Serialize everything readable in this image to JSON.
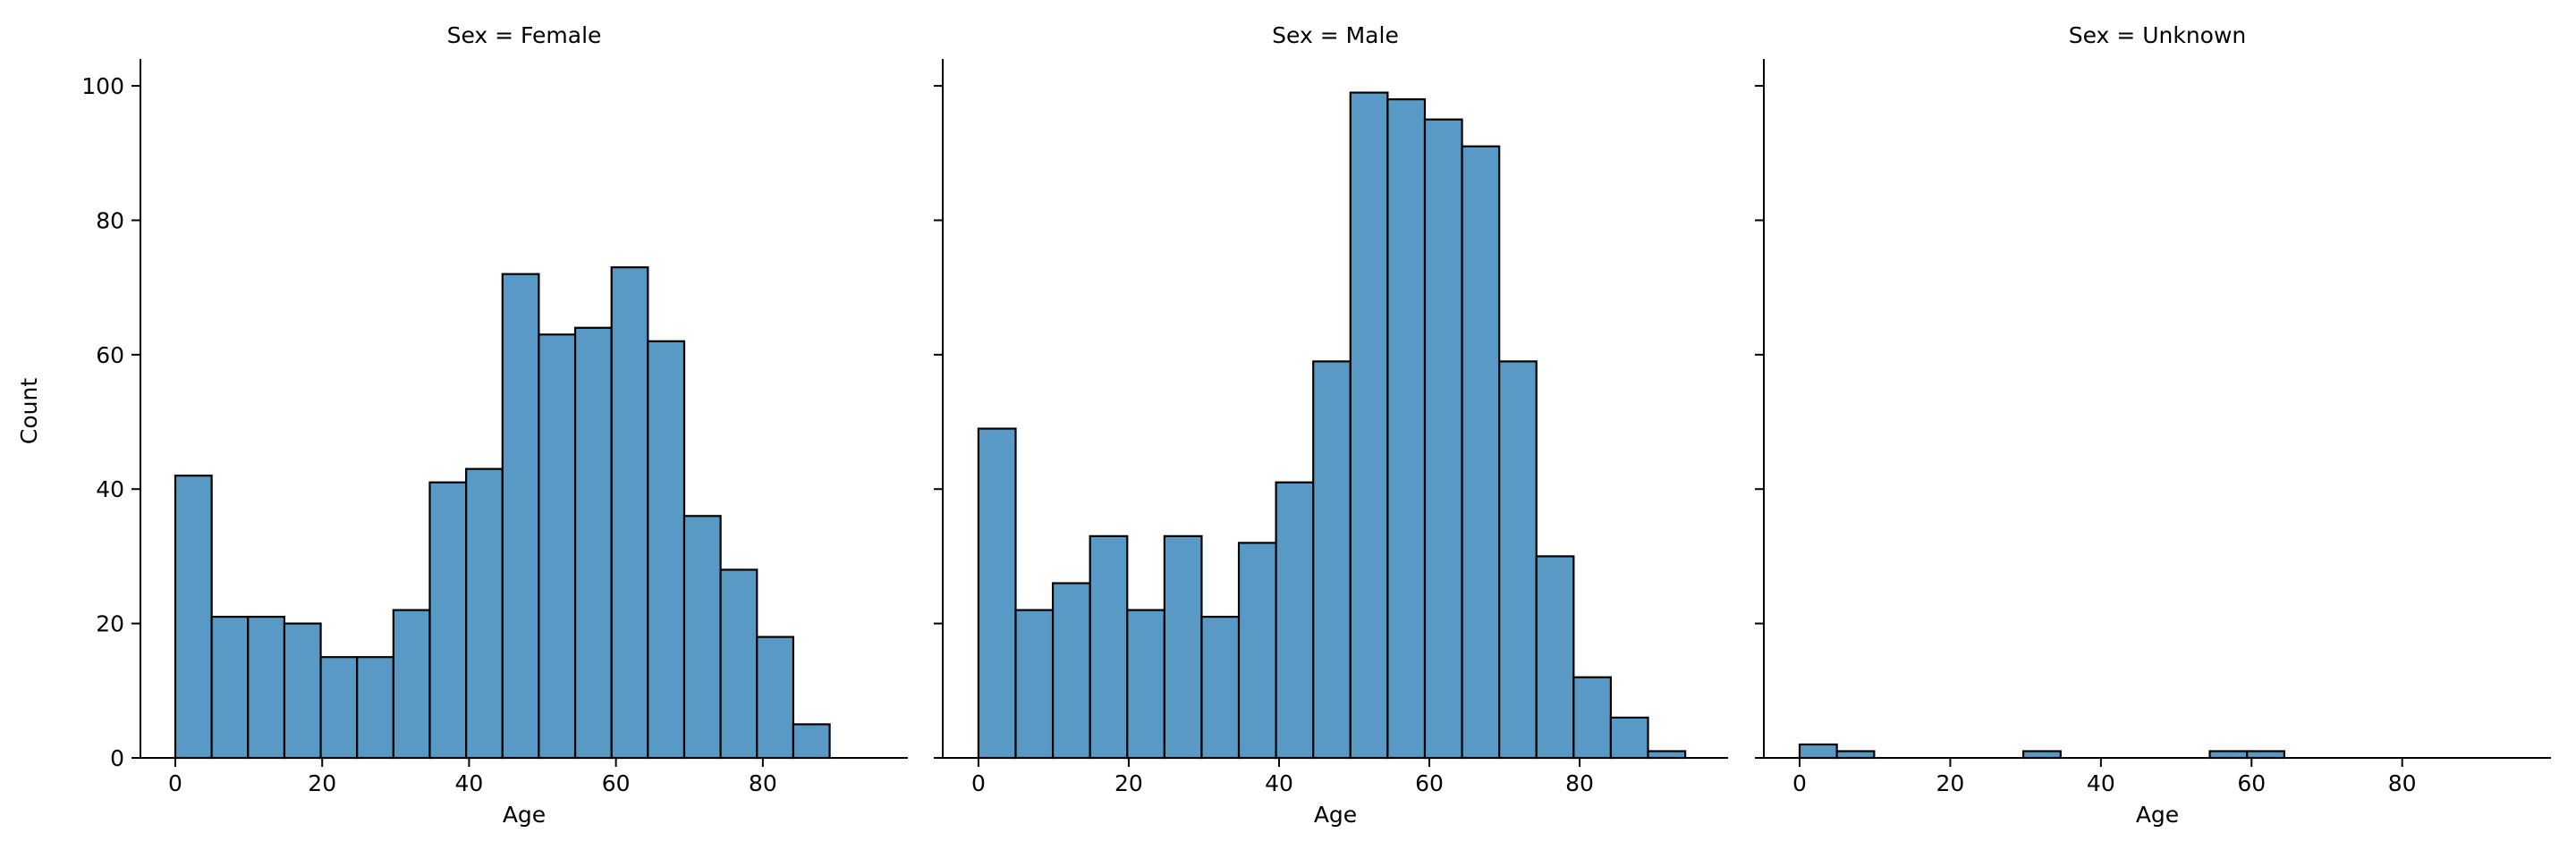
{
  "chart_data": {
    "type": "bar",
    "layout": "facet-histogram",
    "ylabel": "Count",
    "xlabel": "Age",
    "ylim": [
      0,
      104
    ],
    "xlim": [
      -4.75,
      99.75
    ],
    "yticks": [
      0,
      20,
      40,
      60,
      80,
      100
    ],
    "xticks": [
      0,
      20,
      40,
      60,
      80
    ],
    "bin_width": 4.95,
    "bar_color": "#5899c6",
    "edge_color": "#000000",
    "facets": [
      {
        "title": "Sex = Female",
        "bins": [
          {
            "x": 0,
            "count": 42
          },
          {
            "x": 4.95,
            "count": 21
          },
          {
            "x": 9.9,
            "count": 21
          },
          {
            "x": 14.85,
            "count": 20
          },
          {
            "x": 19.8,
            "count": 15
          },
          {
            "x": 24.75,
            "count": 15
          },
          {
            "x": 29.7,
            "count": 22
          },
          {
            "x": 34.65,
            "count": 41
          },
          {
            "x": 39.6,
            "count": 43
          },
          {
            "x": 44.55,
            "count": 72
          },
          {
            "x": 49.5,
            "count": 63
          },
          {
            "x": 54.45,
            "count": 64
          },
          {
            "x": 59.4,
            "count": 73
          },
          {
            "x": 64.35,
            "count": 62
          },
          {
            "x": 69.3,
            "count": 36
          },
          {
            "x": 74.25,
            "count": 28
          },
          {
            "x": 79.2,
            "count": 18
          },
          {
            "x": 84.15,
            "count": 5
          }
        ]
      },
      {
        "title": "Sex = Male",
        "bins": [
          {
            "x": 0,
            "count": 49
          },
          {
            "x": 4.95,
            "count": 22
          },
          {
            "x": 9.9,
            "count": 26
          },
          {
            "x": 14.85,
            "count": 33
          },
          {
            "x": 19.8,
            "count": 22
          },
          {
            "x": 24.75,
            "count": 33
          },
          {
            "x": 29.7,
            "count": 21
          },
          {
            "x": 34.65,
            "count": 32
          },
          {
            "x": 39.6,
            "count": 41
          },
          {
            "x": 44.55,
            "count": 59
          },
          {
            "x": 49.5,
            "count": 99
          },
          {
            "x": 54.45,
            "count": 98
          },
          {
            "x": 59.4,
            "count": 95
          },
          {
            "x": 64.35,
            "count": 91
          },
          {
            "x": 69.3,
            "count": 59
          },
          {
            "x": 74.25,
            "count": 30
          },
          {
            "x": 79.2,
            "count": 12
          },
          {
            "x": 84.15,
            "count": 6
          },
          {
            "x": 89.1,
            "count": 1
          }
        ]
      },
      {
        "title": "Sex = Unknown",
        "bins": [
          {
            "x": 0,
            "count": 2
          },
          {
            "x": 4.95,
            "count": 1
          },
          {
            "x": 29.7,
            "count": 1
          },
          {
            "x": 54.45,
            "count": 1
          },
          {
            "x": 59.4,
            "count": 1
          }
        ]
      }
    ]
  }
}
